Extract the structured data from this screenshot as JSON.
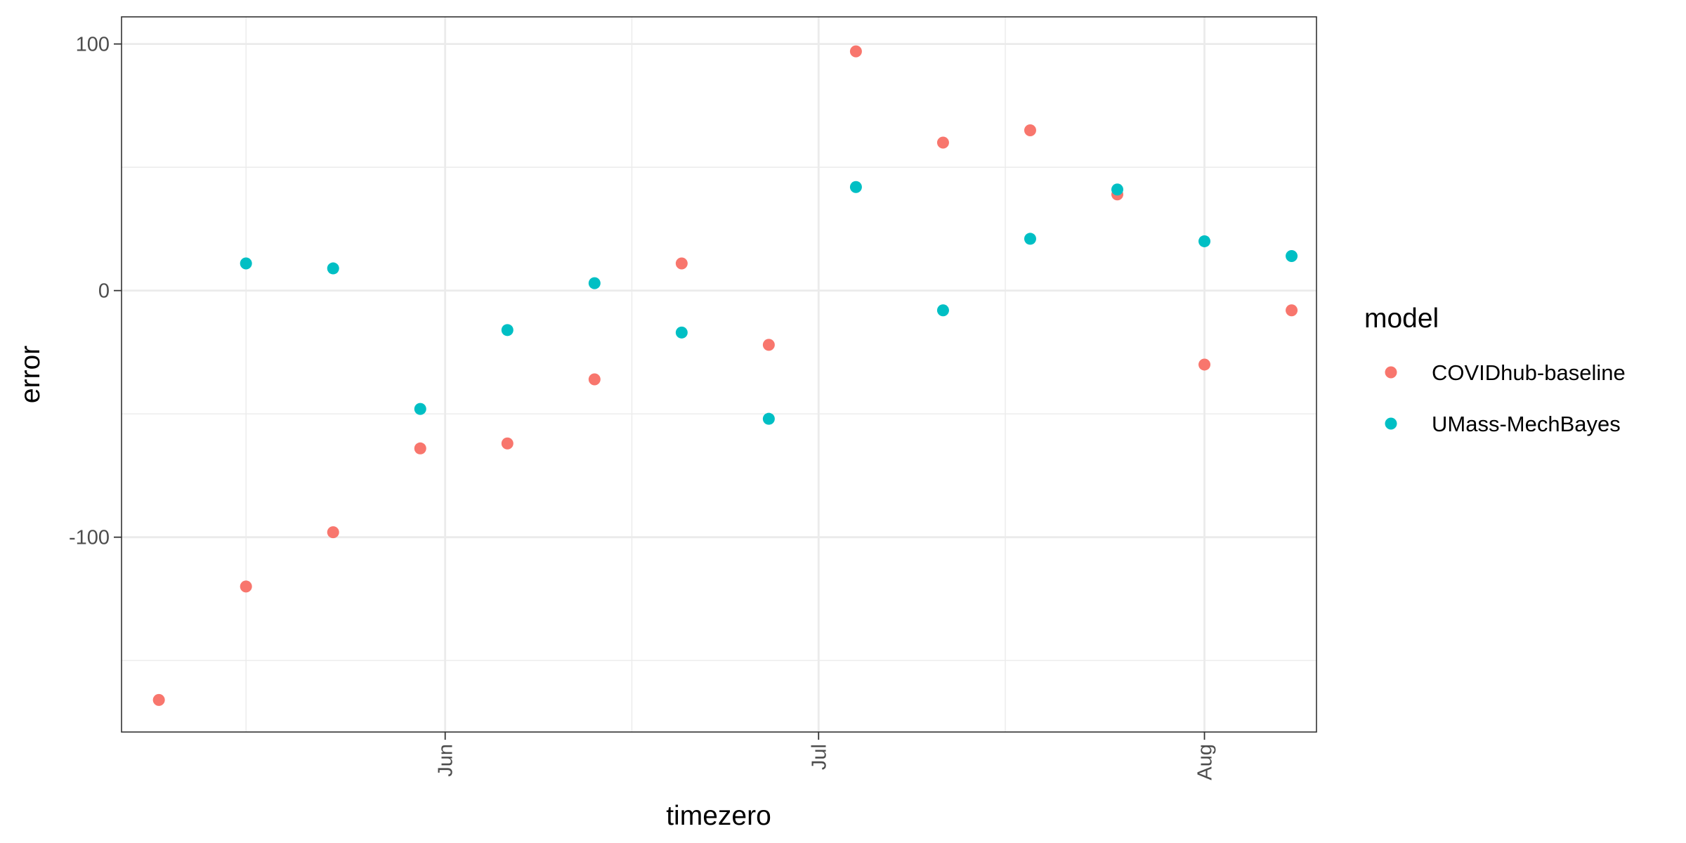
{
  "chart_data": {
    "type": "scatter",
    "xlabel": "timezero",
    "ylabel": "error",
    "x_axis": {
      "type": "date",
      "range": [
        "2020-05-06",
        "2020-08-10"
      ],
      "ticks": [
        {
          "date": "2020-06-01",
          "label": "Jun"
        },
        {
          "date": "2020-07-01",
          "label": "Jul"
        },
        {
          "date": "2020-08-01",
          "label": "Aug"
        }
      ],
      "minor_ticks": [
        "2020-05-16",
        "2020-06-16",
        "2020-07-16"
      ]
    },
    "y_axis": {
      "range": [
        -179,
        111
      ],
      "ticks": [
        {
          "value": 100,
          "label": "100"
        },
        {
          "value": 0,
          "label": "0"
        },
        {
          "value": -100,
          "label": "-100"
        }
      ],
      "minor_ticks": [
        50,
        -50,
        -150
      ]
    },
    "grid": true,
    "legend": {
      "title": "model",
      "position": "right"
    },
    "series": [
      {
        "name": "COVIDhub-baseline",
        "color": "#F8766D",
        "points": [
          {
            "x": "2020-05-09",
            "y": -166
          },
          {
            "x": "2020-05-16",
            "y": -120
          },
          {
            "x": "2020-05-23",
            "y": -98
          },
          {
            "x": "2020-05-30",
            "y": -64
          },
          {
            "x": "2020-06-06",
            "y": -62
          },
          {
            "x": "2020-06-13",
            "y": -36
          },
          {
            "x": "2020-06-20",
            "y": 11
          },
          {
            "x": "2020-06-27",
            "y": -22
          },
          {
            "x": "2020-07-04",
            "y": 97
          },
          {
            "x": "2020-07-11",
            "y": 60
          },
          {
            "x": "2020-07-18",
            "y": 65
          },
          {
            "x": "2020-07-25",
            "y": 39
          },
          {
            "x": "2020-08-01",
            "y": -30
          },
          {
            "x": "2020-08-08",
            "y": -8
          }
        ]
      },
      {
        "name": "UMass-MechBayes",
        "color": "#00BFC4",
        "points": [
          {
            "x": "2020-05-16",
            "y": 11
          },
          {
            "x": "2020-05-23",
            "y": 9
          },
          {
            "x": "2020-05-30",
            "y": -48
          },
          {
            "x": "2020-06-06",
            "y": -16
          },
          {
            "x": "2020-06-13",
            "y": 3
          },
          {
            "x": "2020-06-20",
            "y": -17
          },
          {
            "x": "2020-06-27",
            "y": -52
          },
          {
            "x": "2020-07-04",
            "y": 42
          },
          {
            "x": "2020-07-11",
            "y": -8
          },
          {
            "x": "2020-07-18",
            "y": 21
          },
          {
            "x": "2020-07-25",
            "y": 41
          },
          {
            "x": "2020-08-01",
            "y": 20
          },
          {
            "x": "2020-08-08",
            "y": 14
          }
        ]
      }
    ]
  }
}
